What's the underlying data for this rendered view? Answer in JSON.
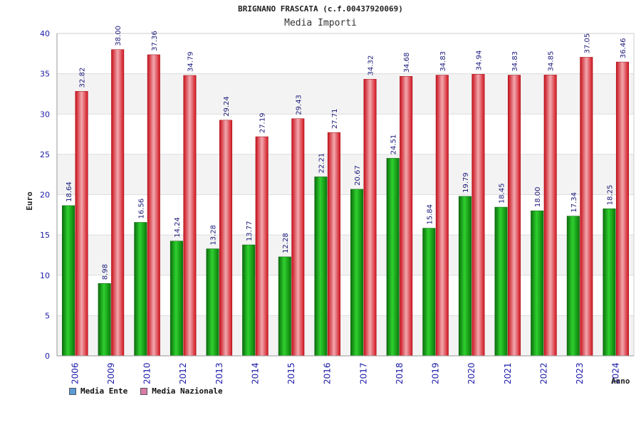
{
  "colors": {
    "ente": "#1aa91a",
    "nazionale": "#e0202a",
    "axis_text": "#1a1aa8",
    "value_text": "#1a1a7a"
  },
  "chart_data": {
    "type": "bar",
    "title": "BRIGNANO FRASCATA (c.f.00437920069)",
    "subtitle": "Media Importi",
    "xlabel": "Anno",
    "ylabel": "Euro",
    "ylim": [
      0,
      40
    ],
    "yticks": [
      0,
      5,
      10,
      15,
      20,
      25,
      30,
      35,
      40
    ],
    "categories": [
      "2006",
      "2009",
      "2010",
      "2012",
      "2013",
      "2014",
      "2015",
      "2016",
      "2017",
      "2018",
      "2019",
      "2020",
      "2021",
      "2022",
      "2023",
      "2024"
    ],
    "series": [
      {
        "name": "Media Ente",
        "legend_color": "#5b9bd5",
        "values": [
          18.64,
          8.98,
          16.56,
          14.24,
          13.28,
          13.77,
          12.28,
          22.21,
          20.67,
          24.51,
          15.84,
          19.79,
          18.45,
          18.0,
          17.34,
          18.25
        ],
        "labels": [
          "18.64",
          "8.98",
          "16.56",
          "14.24",
          "13.28",
          "13.77",
          "12.28",
          "22.21",
          "20.67",
          "24.51",
          "15.84",
          "19.79",
          "18.45",
          "18.00",
          "17.34",
          "18.25"
        ]
      },
      {
        "name": "Media Nazionale",
        "legend_color": "#d97ba8",
        "values": [
          32.82,
          38.0,
          37.36,
          34.79,
          29.24,
          27.19,
          29.43,
          27.71,
          34.32,
          34.68,
          34.83,
          34.94,
          34.83,
          34.85,
          37.05,
          36.46
        ],
        "labels": [
          "32.82",
          "38.00",
          "37.36",
          "34.79",
          "29.24",
          "27.19",
          "29.43",
          "27.71",
          "34.32",
          "34.68",
          "34.83",
          "34.94",
          "34.83",
          "34.85",
          "37.05",
          "36.46"
        ]
      }
    ]
  }
}
